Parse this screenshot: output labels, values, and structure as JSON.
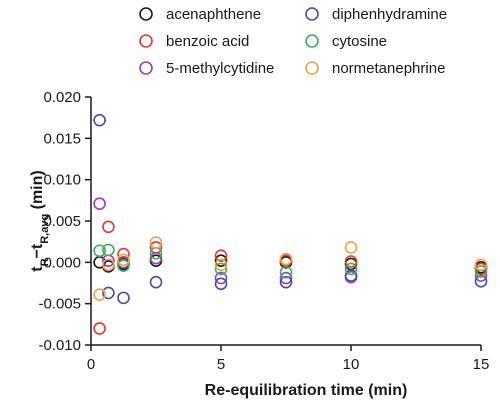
{
  "chart_data": {
    "type": "scatter",
    "title": "",
    "xlabel": "Re-equilibration time (min)",
    "ylabel": {
      "main": "t",
      "sub1": "R",
      "minus": "−t",
      "sub2": "R,avg",
      "unit": " (min)"
    },
    "xlim": [
      0,
      15
    ],
    "ylim": [
      -0.01,
      0.02
    ],
    "xticks": [
      0,
      5,
      10,
      15
    ],
    "xtick_labels": [
      "0",
      "5",
      "10",
      "15"
    ],
    "yticks": [
      -0.01,
      -0.005,
      0,
      0.005,
      0.01,
      0.015,
      0.02
    ],
    "ytick_labels": [
      "-0.010",
      "-0.005",
      "0.000",
      "0.005",
      "0.010",
      "0.015",
      "0.020"
    ],
    "grid": false,
    "legend_position": "top",
    "series": [
      {
        "name": "acenaphthene",
        "color": "#1a1a1a",
        "points": [
          [
            0.33,
            0.0
          ],
          [
            0.67,
            -0.0005
          ],
          [
            1.25,
            -0.0002
          ],
          [
            2.5,
            0.0002
          ],
          [
            5,
            0.0002
          ],
          [
            7.5,
            0.0
          ],
          [
            10,
            -0.0002
          ],
          [
            15,
            -0.0006
          ]
        ]
      },
      {
        "name": "benzoic acid",
        "color": "#e03c31",
        "points": [
          [
            0.33,
            -0.008
          ],
          [
            0.67,
            0.0043
          ],
          [
            1.25,
            0.001
          ],
          [
            2.5,
            0.0018
          ],
          [
            5,
            0.0008
          ],
          [
            7.5,
            0.0002
          ],
          [
            10,
            0.0001
          ],
          [
            15,
            -0.0008
          ]
        ]
      },
      {
        "name": "5-methylcytidine",
        "color": "#9b3fb5",
        "points": [
          [
            0.33,
            0.0071
          ],
          [
            0.67,
            0.0002
          ],
          [
            1.25,
            0.0
          ],
          [
            2.5,
            0.0005
          ],
          [
            5,
            -0.0019
          ],
          [
            7.5,
            -0.0019
          ],
          [
            10,
            -0.0018
          ],
          [
            15,
            -0.0016
          ]
        ]
      },
      {
        "name": "diphenhydramine",
        "color": "#4b4ba6",
        "points": [
          [
            0.33,
            0.0172
          ],
          [
            0.67,
            -0.0037
          ],
          [
            1.25,
            -0.0043
          ],
          [
            2.5,
            -0.0024
          ],
          [
            5,
            -0.0026
          ],
          [
            7.5,
            -0.0024
          ],
          [
            10,
            -0.0016
          ],
          [
            15,
            -0.0023
          ]
        ]
      },
      {
        "name": "cytosine",
        "color": "#3fae5a",
        "points": [
          [
            0.33,
            0.0014
          ],
          [
            0.67,
            0.0015
          ],
          [
            1.25,
            -0.0004
          ],
          [
            2.5,
            0.0011
          ],
          [
            5,
            -0.0008
          ],
          [
            7.5,
            -0.0012
          ],
          [
            10,
            -0.0008
          ],
          [
            15,
            -0.0011
          ]
        ]
      },
      {
        "name": "normetanephrine",
        "color": "#f0a050",
        "points": [
          [
            0.33,
            -0.0039
          ],
          [
            0.67,
            -0.0003
          ],
          [
            1.25,
            0.0003
          ],
          [
            2.5,
            0.0024
          ],
          [
            5,
            -0.0003
          ],
          [
            7.5,
            0.0004
          ],
          [
            10,
            0.0018
          ],
          [
            15,
            -0.0003
          ]
        ]
      }
    ]
  }
}
